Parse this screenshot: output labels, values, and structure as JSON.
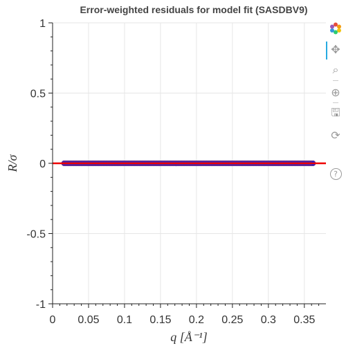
{
  "chart_data": {
    "type": "scatter",
    "title": "Error-weighted residuals for model fit (SASDBV9)",
    "xlabel": "q [Å⁻¹]",
    "ylabel": "R/σ",
    "xlim": [
      0,
      0.38
    ],
    "ylim": [
      -1,
      1
    ],
    "x_ticks": [
      0,
      0.05,
      0.1,
      0.15,
      0.2,
      0.25,
      0.3,
      0.35
    ],
    "x_tick_labels": [
      "0",
      "0.05",
      "0.1",
      "0.15",
      "0.2",
      "0.25",
      "0.3",
      "0.35"
    ],
    "y_ticks": [
      -1,
      -0.5,
      0,
      0.5,
      1
    ],
    "y_tick_labels": [
      "-1",
      "-0.5",
      "0",
      "0.5",
      "1"
    ],
    "grid": true,
    "series": [
      {
        "color": "#1f1fd6",
        "x_range": [
          0.016,
          0.362
        ],
        "y": 0
      }
    ],
    "reference_line": {
      "y": 0,
      "color": "#ee0000"
    },
    "colors": {
      "points": "#1f1fd6",
      "points_edge": "#6a2a8a",
      "reference": "#ee0000",
      "grid": "#e6e6e6",
      "axis": "#222222"
    }
  },
  "toolbar": {
    "tools": [
      {
        "name": "bokeh-logo-icon",
        "glyph": ""
      },
      {
        "name": "pan-tool-icon",
        "glyph": "✥"
      },
      {
        "name": "box-zoom-tool-icon",
        "glyph": "⌕"
      },
      {
        "name": "wheel-zoom-tool-icon",
        "glyph": "⊕"
      },
      {
        "name": "save-tool-icon",
        "glyph": "🖫"
      },
      {
        "name": "reset-tool-icon",
        "glyph": "⟳"
      },
      {
        "name": "help-tool-icon",
        "glyph": "?"
      }
    ]
  }
}
